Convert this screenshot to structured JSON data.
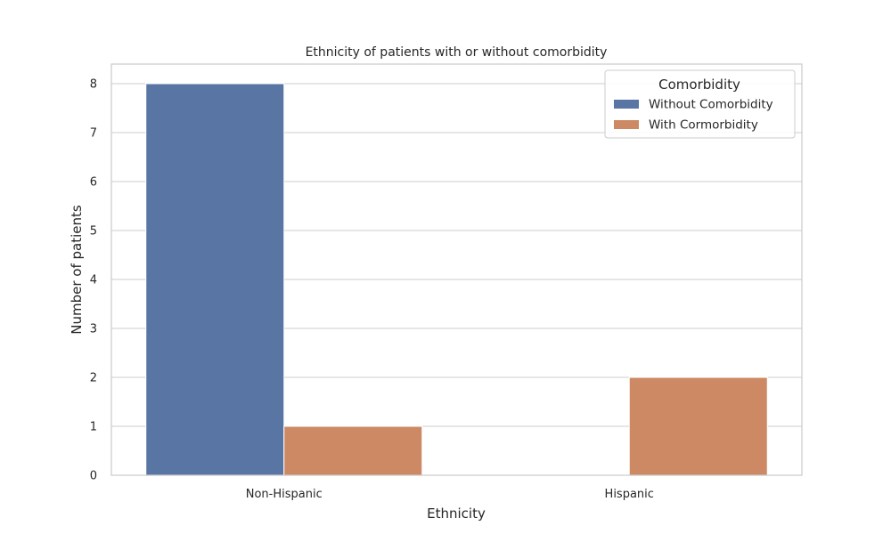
{
  "chart_data": {
    "type": "bar",
    "title": "Ethnicity of patients with or without comorbidity",
    "xlabel": "Ethnicity",
    "ylabel": "Number of patients",
    "categories": [
      "Non-Hispanic",
      "Hispanic"
    ],
    "series": [
      {
        "name": "Without Comorbidity",
        "values": [
          8,
          0
        ],
        "color": "#5875a4"
      },
      {
        "name": "With Cormorbidity",
        "values": [
          1,
          2
        ],
        "color": "#cc8963"
      }
    ],
    "ylim": [
      0,
      8.4
    ],
    "yticks": [
      0,
      1,
      2,
      3,
      4,
      5,
      6,
      7,
      8
    ],
    "grid": true,
    "legend": {
      "title": "Comorbidity",
      "placement": "top-right"
    }
  }
}
